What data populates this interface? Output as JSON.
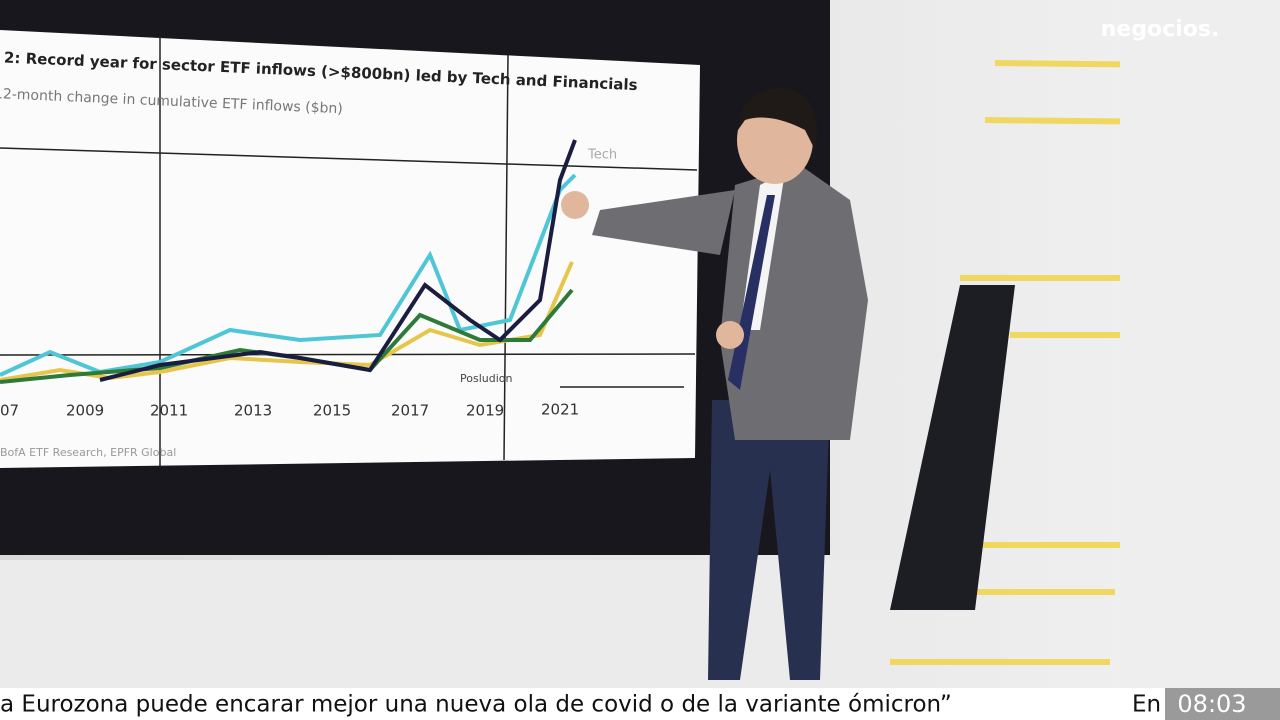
{
  "logo": "negocios.",
  "screen": {
    "title": "2: Record year for sector ETF inflows (>$800bn) led by Tech and Financials",
    "subtitle": "12-month change in cumulative ETF inflows ($bn)",
    "x_labels": [
      "07",
      "2009",
      "2011",
      "2013",
      "2015",
      "2017",
      "2019",
      "2021"
    ],
    "line_labels": [
      "Tech",
      "Posludion"
    ],
    "source": "BofA ETF Research, EPFR Global"
  },
  "ticker": {
    "headline": "a Eurozona puede encarar mejor una nueva ola de covid o de la variante ómicron”",
    "next": "En",
    "time": "08:03"
  }
}
